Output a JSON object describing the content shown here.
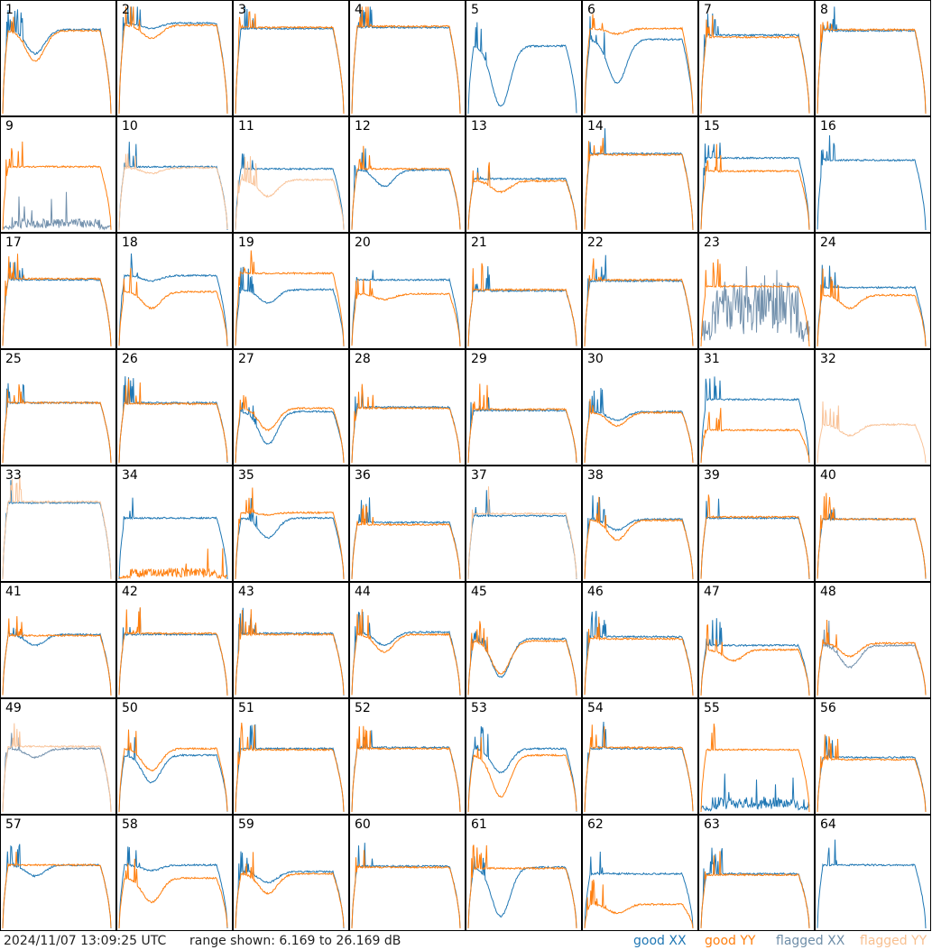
{
  "footer": {
    "timestamp": "2024/11/07 13:09:25 UTC",
    "range": "range shown: 6.169 to 26.169 dB",
    "legend": {
      "good_xx": "good XX",
      "good_yy": "good YY",
      "flagged_xx": "flagged XX",
      "flagged_yy": "flagged YY"
    }
  },
  "colors": {
    "good_xx": "#1f77b4",
    "good_yy": "#ff7f0e",
    "flagged_xx": "#7391ad",
    "flagged_yy": "#f9c49a"
  },
  "chart_data": {
    "type": "line",
    "ylim_db": [
      6.169,
      26.169
    ],
    "panels": [
      {
        "id": "1",
        "xx": {
          "level": 0.77,
          "dip": 0.22,
          "flag": false
        },
        "yy": {
          "level": 0.76,
          "dip": 0.28,
          "flag": false
        }
      },
      {
        "id": "2",
        "xx": {
          "level": 0.83,
          "dip": 0.05,
          "flag": false
        },
        "yy": {
          "level": 0.81,
          "dip": 0.12,
          "flag": false
        }
      },
      {
        "id": "3",
        "xx": {
          "level": 0.78,
          "dip": 0,
          "flag": false
        },
        "yy": {
          "level": 0.79,
          "dip": 0,
          "flag": false
        }
      },
      {
        "id": "4",
        "xx": {
          "level": 0.79,
          "dip": 0,
          "flag": false
        },
        "yy": {
          "level": 0.8,
          "dip": 0,
          "flag": false
        }
      },
      {
        "id": "5",
        "xx": {
          "level": 0.62,
          "dip": 0.55,
          "flag": false
        },
        "yy": null
      },
      {
        "id": "6",
        "xx": {
          "level": 0.68,
          "dip": 0.4,
          "flag": false
        },
        "yy": {
          "level": 0.78,
          "dip": 0.05,
          "flag": false
        }
      },
      {
        "id": "7",
        "xx": {
          "level": 0.72,
          "dip": 0,
          "flag": false
        },
        "yy": {
          "level": 0.7,
          "dip": 0,
          "flag": false
        }
      },
      {
        "id": "8",
        "xx": {
          "level": 0.76,
          "dip": 0,
          "flag": false
        },
        "yy": {
          "level": 0.77,
          "dip": 0,
          "flag": false
        }
      },
      {
        "id": "9",
        "xx": {
          "level": 0.06,
          "dip": 0,
          "flag": true,
          "noise": true
        },
        "yy": {
          "level": 0.58,
          "dip": 0,
          "flag": false
        }
      },
      {
        "id": "10",
        "xx": {
          "level": 0.58,
          "dip": 0,
          "flag": false
        },
        "yy": {
          "level": 0.57,
          "dip": 0.05,
          "flag": true
        }
      },
      {
        "id": "11",
        "xx": {
          "level": 0.56,
          "dip": 0,
          "flag": false
        },
        "yy": {
          "level": 0.46,
          "dip": 0.15,
          "flag": true
        }
      },
      {
        "id": "12",
        "xx": {
          "level": 0.55,
          "dip": 0.15,
          "flag": false
        },
        "yy": {
          "level": 0.56,
          "dip": 0,
          "flag": false
        }
      },
      {
        "id": "13",
        "xx": {
          "level": 0.47,
          "dip": 0,
          "flag": false
        },
        "yy": {
          "level": 0.45,
          "dip": 0.1,
          "flag": false
        }
      },
      {
        "id": "14",
        "xx": {
          "level": 0.7,
          "dip": 0,
          "flag": false
        },
        "yy": {
          "level": 0.69,
          "dip": 0,
          "flag": false
        }
      },
      {
        "id": "15",
        "xx": {
          "level": 0.66,
          "dip": 0,
          "flag": false
        },
        "yy": {
          "level": 0.54,
          "dip": 0,
          "flag": false
        }
      },
      {
        "id": "16",
        "xx": {
          "level": 0.64,
          "dip": 0,
          "flag": false
        },
        "yy": null
      },
      {
        "id": "17",
        "xx": {
          "level": 0.61,
          "dip": 0,
          "flag": false
        },
        "yy": {
          "level": 0.62,
          "dip": 0,
          "flag": false
        }
      },
      {
        "id": "18",
        "xx": {
          "level": 0.65,
          "dip": 0.05,
          "flag": false
        },
        "yy": {
          "level": 0.5,
          "dip": 0.15,
          "flag": false
        }
      },
      {
        "id": "19",
        "xx": {
          "level": 0.52,
          "dip": 0.12,
          "flag": false
        },
        "yy": {
          "level": 0.67,
          "dip": 0,
          "flag": false
        }
      },
      {
        "id": "20",
        "xx": {
          "level": 0.61,
          "dip": 0,
          "flag": false
        },
        "yy": {
          "level": 0.48,
          "dip": 0.05,
          "flag": false
        }
      },
      {
        "id": "21",
        "xx": {
          "level": 0.51,
          "dip": 0,
          "flag": false
        },
        "yy": {
          "level": 0.52,
          "dip": 0,
          "flag": false
        }
      },
      {
        "id": "22",
        "xx": {
          "level": 0.6,
          "dip": 0,
          "flag": false
        },
        "yy": {
          "level": 0.61,
          "dip": 0,
          "flag": false
        }
      },
      {
        "id": "23",
        "xx": {
          "level": 0.35,
          "dip": 0,
          "flag": true,
          "noise": true
        },
        "yy": {
          "level": 0.55,
          "dip": 0,
          "flag": false
        }
      },
      {
        "id": "24",
        "xx": {
          "level": 0.54,
          "dip": 0,
          "flag": false
        },
        "yy": {
          "level": 0.47,
          "dip": 0.12,
          "flag": false
        }
      },
      {
        "id": "25",
        "xx": {
          "level": 0.55,
          "dip": 0,
          "flag": false
        },
        "yy": {
          "level": 0.55,
          "dip": 0,
          "flag": false
        }
      },
      {
        "id": "26",
        "xx": {
          "level": 0.55,
          "dip": 0,
          "flag": false
        },
        "yy": {
          "level": 0.54,
          "dip": 0,
          "flag": false
        }
      },
      {
        "id": "27",
        "xx": {
          "level": 0.47,
          "dip": 0.3,
          "flag": false
        },
        "yy": {
          "level": 0.5,
          "dip": 0.2,
          "flag": false
        }
      },
      {
        "id": "28",
        "xx": {
          "level": 0.51,
          "dip": 0,
          "flag": false
        },
        "yy": {
          "level": 0.5,
          "dip": 0,
          "flag": false
        }
      },
      {
        "id": "29",
        "xx": {
          "level": 0.48,
          "dip": 0,
          "flag": false
        },
        "yy": {
          "level": 0.49,
          "dip": 0,
          "flag": false
        }
      },
      {
        "id": "30",
        "xx": {
          "level": 0.47,
          "dip": 0.08,
          "flag": false
        },
        "yy": {
          "level": 0.46,
          "dip": 0.12,
          "flag": false
        }
      },
      {
        "id": "31",
        "xx": {
          "level": 0.58,
          "dip": 0,
          "flag": false
        },
        "yy": {
          "level": 0.3,
          "dip": 0,
          "flag": false
        }
      },
      {
        "id": "32",
        "xx": null,
        "yy": {
          "level": 0.35,
          "dip": 0.1,
          "flag": true
        }
      },
      {
        "id": "33",
        "xx": {
          "level": 0.7,
          "dip": 0,
          "flag": false
        },
        "yy": {
          "level": 0.71,
          "dip": 0,
          "flag": true
        }
      },
      {
        "id": "34",
        "xx": {
          "level": 0.56,
          "dip": 0,
          "flag": false
        },
        "yy": {
          "level": 0.06,
          "dip": 0,
          "flag": false,
          "noise": true
        }
      },
      {
        "id": "35",
        "xx": {
          "level": 0.56,
          "dip": 0.18,
          "flag": false
        },
        "yy": {
          "level": 0.61,
          "dip": 0.02,
          "flag": false
        }
      },
      {
        "id": "36",
        "xx": {
          "level": 0.52,
          "dip": 0,
          "flag": false
        },
        "yy": {
          "level": 0.5,
          "dip": 0,
          "flag": false
        }
      },
      {
        "id": "37",
        "xx": {
          "level": 0.58,
          "dip": 0,
          "flag": false
        },
        "yy": {
          "level": 0.6,
          "dip": 0,
          "flag": true
        }
      },
      {
        "id": "38",
        "xx": {
          "level": 0.55,
          "dip": 0.1,
          "flag": false
        },
        "yy": {
          "level": 0.54,
          "dip": 0.18,
          "flag": false
        }
      },
      {
        "id": "39",
        "xx": {
          "level": 0.56,
          "dip": 0,
          "flag": false
        },
        "yy": {
          "level": 0.57,
          "dip": 0,
          "flag": false
        }
      },
      {
        "id": "40",
        "xx": {
          "level": 0.55,
          "dip": 0,
          "flag": false
        },
        "yy": {
          "level": 0.55,
          "dip": 0,
          "flag": false
        }
      },
      {
        "id": "41",
        "xx": {
          "level": 0.56,
          "dip": 0.1,
          "flag": false
        },
        "yy": {
          "level": 0.55,
          "dip": 0,
          "flag": false
        }
      },
      {
        "id": "42",
        "xx": {
          "level": 0.56,
          "dip": 0,
          "flag": false
        },
        "yy": {
          "level": 0.57,
          "dip": 0,
          "flag": false
        }
      },
      {
        "id": "43",
        "xx": {
          "level": 0.57,
          "dip": 0,
          "flag": false
        },
        "yy": {
          "level": 0.56,
          "dip": 0,
          "flag": false
        }
      },
      {
        "id": "44",
        "xx": {
          "level": 0.58,
          "dip": 0.12,
          "flag": false
        },
        "yy": {
          "level": 0.56,
          "dip": 0.16,
          "flag": false
        }
      },
      {
        "id": "45",
        "xx": {
          "level": 0.52,
          "dip": 0.35,
          "flag": false
        },
        "yy": {
          "level": 0.5,
          "dip": 0.3,
          "flag": false
        }
      },
      {
        "id": "46",
        "xx": {
          "level": 0.54,
          "dip": 0,
          "flag": false
        },
        "yy": {
          "level": 0.52,
          "dip": 0,
          "flag": false
        }
      },
      {
        "id": "47",
        "xx": {
          "level": 0.46,
          "dip": 0,
          "flag": false
        },
        "yy": {
          "level": 0.42,
          "dip": 0.1,
          "flag": false
        }
      },
      {
        "id": "48",
        "xx": {
          "level": 0.46,
          "dip": 0.2,
          "flag": true
        },
        "yy": {
          "level": 0.48,
          "dip": 0.12,
          "flag": false
        }
      },
      {
        "id": "49",
        "xx": {
          "level": 0.58,
          "dip": 0.08,
          "flag": true
        },
        "yy": {
          "level": 0.6,
          "dip": 0,
          "flag": true
        }
      },
      {
        "id": "50",
        "xx": {
          "level": 0.52,
          "dip": 0.25,
          "flag": false
        },
        "yy": {
          "level": 0.58,
          "dip": 0.2,
          "flag": false
        }
      },
      {
        "id": "51",
        "xx": {
          "level": 0.58,
          "dip": 0,
          "flag": false
        },
        "yy": {
          "level": 0.57,
          "dip": 0,
          "flag": false
        }
      },
      {
        "id": "52",
        "xx": {
          "level": 0.59,
          "dip": 0,
          "flag": false
        },
        "yy": {
          "level": 0.58,
          "dip": 0,
          "flag": false
        }
      },
      {
        "id": "53",
        "xx": {
          "level": 0.58,
          "dip": 0.22,
          "flag": false
        },
        "yy": {
          "level": 0.52,
          "dip": 0.38,
          "flag": false
        }
      },
      {
        "id": "54",
        "xx": {
          "level": 0.58,
          "dip": 0,
          "flag": false
        },
        "yy": {
          "level": 0.59,
          "dip": 0,
          "flag": false
        }
      },
      {
        "id": "55",
        "xx": {
          "level": 0.08,
          "dip": 0,
          "flag": false,
          "noise": true
        },
        "yy": {
          "level": 0.57,
          "dip": 0,
          "flag": false
        }
      },
      {
        "id": "56",
        "xx": {
          "level": 0.5,
          "dip": 0,
          "flag": false
        },
        "yy": {
          "level": 0.48,
          "dip": 0,
          "flag": false
        }
      },
      {
        "id": "57",
        "xx": {
          "level": 0.58,
          "dip": 0.1,
          "flag": false
        },
        "yy": {
          "level": 0.58,
          "dip": 0,
          "flag": false
        }
      },
      {
        "id": "58",
        "xx": {
          "level": 0.58,
          "dip": 0.05,
          "flag": false
        },
        "yy": {
          "level": 0.46,
          "dip": 0.22,
          "flag": false
        }
      },
      {
        "id": "59",
        "xx": {
          "level": 0.52,
          "dip": 0.1,
          "flag": false
        },
        "yy": {
          "level": 0.5,
          "dip": 0.18,
          "flag": false
        }
      },
      {
        "id": "60",
        "xx": {
          "level": 0.57,
          "dip": 0,
          "flag": false
        },
        "yy": {
          "level": 0.56,
          "dip": 0,
          "flag": false
        }
      },
      {
        "id": "61",
        "xx": {
          "level": 0.56,
          "dip": 0.45,
          "flag": false
        },
        "yy": {
          "level": 0.55,
          "dip": 0,
          "flag": false
        }
      },
      {
        "id": "62",
        "xx": {
          "level": 0.5,
          "dip": 0,
          "flag": false
        },
        "yy": {
          "level": 0.22,
          "dip": 0.08,
          "flag": false
        }
      },
      {
        "id": "63",
        "xx": {
          "level": 0.5,
          "dip": 0,
          "flag": false
        },
        "yy": {
          "level": 0.49,
          "dip": 0,
          "flag": false
        }
      },
      {
        "id": "64",
        "xx": {
          "level": 0.58,
          "dip": 0,
          "flag": false
        },
        "yy": null
      }
    ]
  }
}
